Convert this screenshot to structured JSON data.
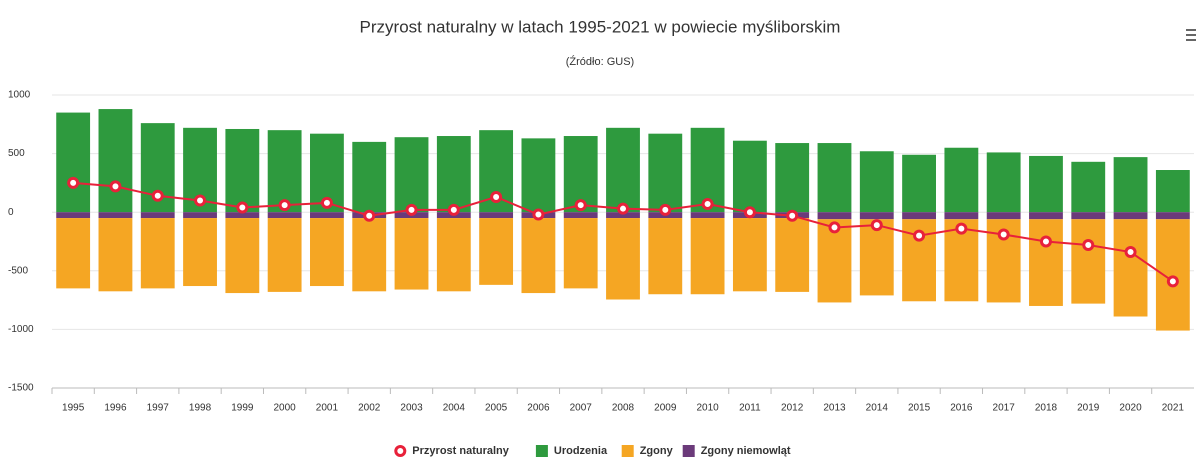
{
  "chart_data": {
    "type": "bar",
    "stacked": true,
    "grid": true,
    "legend": "bottom",
    "title": "Przyrost naturalny w latach 1995-2021 w powiecie myśliborskim",
    "subtitle": "(Źródło: GUS)",
    "categories": [
      "1995",
      "1996",
      "1997",
      "1998",
      "1999",
      "2000",
      "2001",
      "2002",
      "2003",
      "2004",
      "2005",
      "2006",
      "2007",
      "2008",
      "2009",
      "2010",
      "2011",
      "2012",
      "2013",
      "2014",
      "2015",
      "2016",
      "2017",
      "2018",
      "2019",
      "2020",
      "2021"
    ],
    "ylim": [
      -1500,
      1000
    ],
    "yticks": [
      -1500,
      -1000,
      -500,
      0,
      500,
      1000
    ],
    "series": [
      {
        "name": "Przyrost naturalny",
        "type": "line",
        "color": "#e8213a",
        "values": [
          250,
          220,
          140,
          100,
          40,
          60,
          80,
          -30,
          20,
          20,
          130,
          -20,
          60,
          30,
          20,
          70,
          0,
          -30,
          -130,
          -110,
          -200,
          -140,
          -190,
          -250,
          -280,
          -340,
          -590
        ]
      },
      {
        "name": "Urodzenia",
        "type": "bar",
        "color": "#2e9a3e",
        "values": [
          850,
          880,
          760,
          720,
          710,
          700,
          670,
          600,
          640,
          650,
          700,
          630,
          650,
          720,
          670,
          720,
          610,
          590,
          590,
          520,
          490,
          550,
          510,
          480,
          430,
          470,
          360
        ]
      },
      {
        "name": "Zgony",
        "type": "bar",
        "color": "#f5a623",
        "values": [
          -600,
          -625,
          -600,
          -580,
          -640,
          -630,
          -580,
          -625,
          -610,
          -625,
          -570,
          -640,
          -600,
          -695,
          -650,
          -650,
          -625,
          -630,
          -710,
          -650,
          -700,
          -700,
          -710,
          -740,
          -720,
          -830,
          -950
        ]
      },
      {
        "name": "Zgony niemowląt",
        "type": "bar",
        "color": "#6b3a7a",
        "values": [
          -50,
          -50,
          -50,
          -50,
          -50,
          -50,
          -50,
          -50,
          -50,
          -50,
          -50,
          -50,
          -50,
          -50,
          -50,
          -50,
          -50,
          -50,
          -60,
          -60,
          -60,
          -60,
          -60,
          -60,
          -60,
          -60,
          -60
        ]
      }
    ]
  }
}
